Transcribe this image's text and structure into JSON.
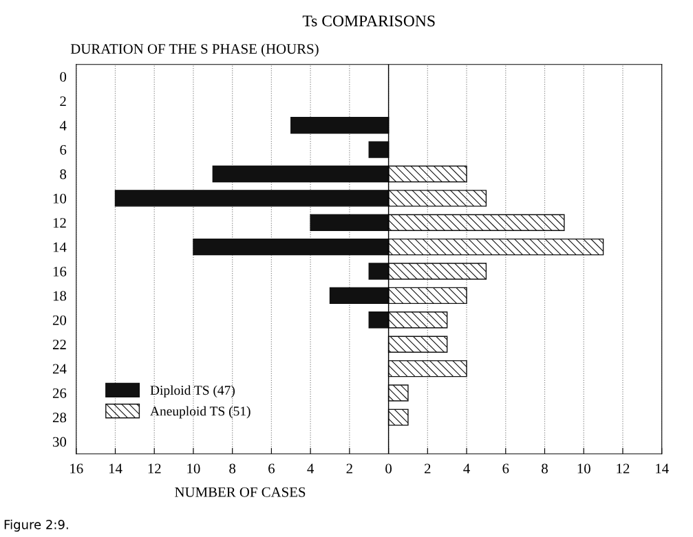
{
  "chart_data": {
    "type": "bar",
    "orientation": "horizontal",
    "title": "Ts COMPARISONS",
    "ylabel": "DURATION OF THE S PHASE (HOURS)",
    "xlabel": "NUMBER OF CASES",
    "categories": [
      "0",
      "2",
      "4",
      "6",
      "8",
      "10",
      "12",
      "14",
      "16",
      "18",
      "20",
      "22",
      "24",
      "26",
      "28",
      "30"
    ],
    "series": [
      {
        "name": "Diploid TS (47)",
        "color": "#111111",
        "values": [
          0,
          0,
          -5,
          -1,
          -9,
          -14,
          -4,
          -10,
          -1,
          -3,
          -1,
          0,
          0,
          0,
          0,
          0
        ]
      },
      {
        "name": "Aneuploid TS (51)",
        "color": "#111111",
        "values": [
          0,
          0,
          0,
          0,
          4,
          5,
          9,
          11,
          5,
          4,
          3,
          3,
          4,
          1,
          1,
          0
        ]
      }
    ],
    "xlim": [
      -16,
      14
    ],
    "xticks": [
      {
        "value": -16,
        "label": "16"
      },
      {
        "value": -14,
        "label": "14"
      },
      {
        "value": -12,
        "label": "12"
      },
      {
        "value": -10,
        "label": "10"
      },
      {
        "value": -8,
        "label": "8"
      },
      {
        "value": -6,
        "label": "6"
      },
      {
        "value": -4,
        "label": "4"
      },
      {
        "value": -2,
        "label": "2"
      },
      0,
      2,
      4,
      6,
      8,
      10,
      12,
      14
    ],
    "ref_lines": [
      {
        "axis": "x",
        "value": 0,
        "color": "#000000",
        "line_style": "solid"
      }
    ],
    "grid": "x",
    "legend": "bottom left",
    "annotations": [
      "Figure 2:9."
    ]
  }
}
